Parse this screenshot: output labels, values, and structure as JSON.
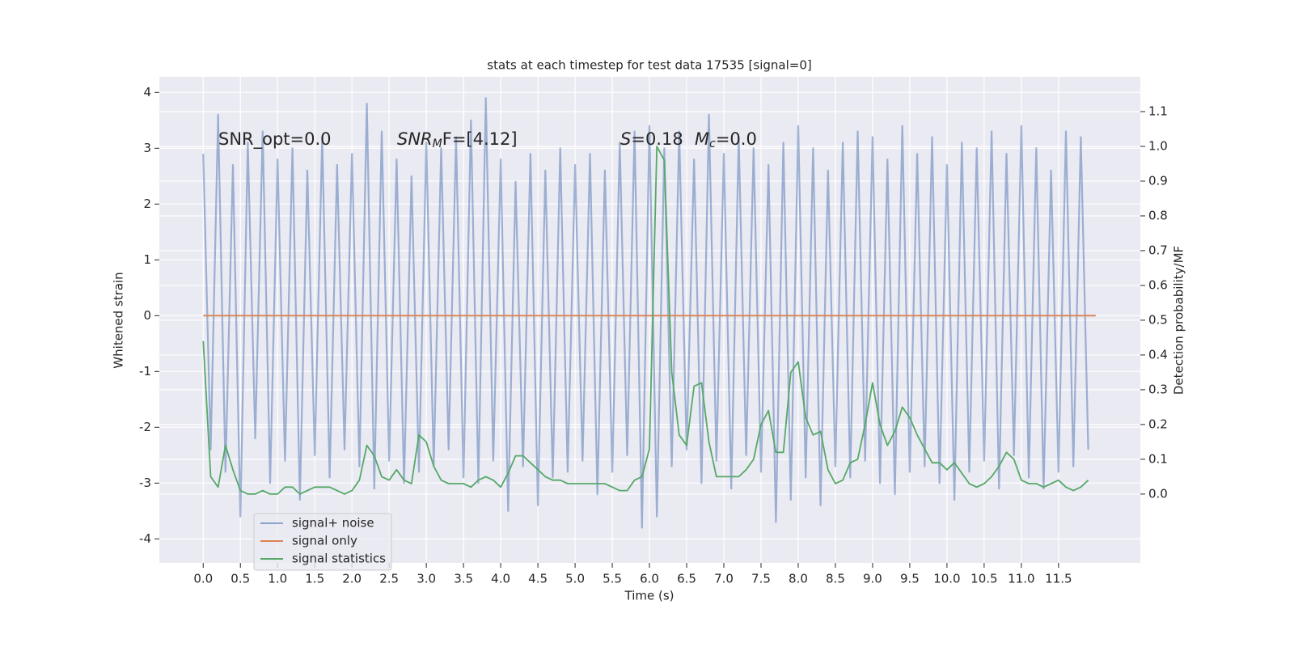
{
  "chart_data": {
    "type": "line",
    "title": "stats at each timestep for test data 17535 [signal=0]",
    "xlabel": "Time (s)",
    "ylabel": "Whitened strain",
    "y2label": "Detection probability/MF",
    "annotations": [
      "SNR_opt=0.0",
      [
        "SNR",
        "M",
        "F=[4.12]"
      ],
      [
        "S",
        "=0.18"
      ],
      [
        "M",
        "c",
        "=0.0"
      ]
    ],
    "x": [
      0,
      0.1,
      0.2,
      0.3,
      0.4,
      0.5,
      0.6,
      0.7,
      0.8,
      0.9,
      1,
      1.1,
      1.2,
      1.3,
      1.4,
      1.5,
      1.6,
      1.7,
      1.8,
      1.9,
      2,
      2.1,
      2.2,
      2.3,
      2.4,
      2.5,
      2.6,
      2.7,
      2.8,
      2.9,
      3,
      3.1,
      3.2,
      3.3,
      3.4,
      3.5,
      3.6,
      3.7,
      3.8,
      3.9,
      4,
      4.1,
      4.2,
      4.3,
      4.4,
      4.5,
      4.6,
      4.7,
      4.8,
      4.9,
      5,
      5.1,
      5.2,
      5.3,
      5.4,
      5.5,
      5.6,
      5.7,
      5.8,
      5.9,
      6,
      6.1,
      6.2,
      6.3,
      6.4,
      6.5,
      6.6,
      6.7,
      6.8,
      6.9,
      7,
      7.1,
      7.2,
      7.3,
      7.4,
      7.5,
      7.6,
      7.7,
      7.8,
      7.9,
      8,
      8.1,
      8.2,
      8.3,
      8.4,
      8.5,
      8.6,
      8.7,
      8.8,
      8.9,
      9,
      9.1,
      9.2,
      9.3,
      9.4,
      9.5,
      9.6,
      9.7,
      9.8,
      9.9,
      10,
      10.1,
      10.2,
      10.3,
      10.4,
      10.5,
      10.6,
      10.7,
      10.8,
      10.9,
      11,
      11.1,
      11.2,
      11.3,
      11.4,
      11.5,
      11.6,
      11.7,
      11.8,
      11.9
    ],
    "series": [
      {
        "name": "signal+ noise",
        "color": "#4c72b0",
        "axis": "y",
        "values": [
          2.9,
          -2.4,
          3.6,
          -2.8,
          2.7,
          -3.6,
          3.1,
          -2.2,
          3.3,
          -3.0,
          2.8,
          -2.6,
          3.0,
          -3.3,
          2.6,
          -2.5,
          3.2,
          -2.9,
          2.7,
          -2.4,
          2.9,
          -2.7,
          3.8,
          -3.1,
          3.3,
          -2.6,
          2.8,
          -3.0,
          2.5,
          -2.8,
          3.1,
          -2.7,
          3.0,
          -2.4,
          3.2,
          -2.9,
          3.5,
          -3.0,
          3.9,
          -2.6,
          2.8,
          -3.5,
          2.4,
          -2.7,
          2.9,
          -3.4,
          2.6,
          -2.9,
          3.0,
          -2.8,
          2.7,
          -2.6,
          2.9,
          -3.2,
          2.6,
          -2.8,
          3.1,
          -2.5,
          3.3,
          -3.8,
          3.4,
          -3.6,
          3.0,
          -2.7,
          3.3,
          -2.4,
          2.8,
          -3.0,
          3.6,
          -2.6,
          2.9,
          -3.1,
          3.2,
          -2.5,
          3.0,
          -2.8,
          2.7,
          -3.7,
          3.1,
          -3.3,
          3.4,
          -2.9,
          3.0,
          -3.4,
          2.6,
          -2.7,
          3.1,
          -2.9,
          3.3,
          -2.6,
          3.2,
          -3.0,
          2.8,
          -3.2,
          3.4,
          -2.8,
          2.9,
          -2.7,
          3.2,
          -3.0,
          2.7,
          -3.3,
          3.1,
          -2.8,
          3.0,
          -2.6,
          3.3,
          -3.1,
          2.9,
          -2.5,
          3.4,
          -2.9,
          3.0,
          -3.1,
          2.6,
          -2.8,
          3.3,
          -2.7,
          3.2,
          -2.4
        ]
      },
      {
        "name": "signal only",
        "color": "#dd8452",
        "axis": "y",
        "x": [
          0,
          12
        ],
        "values": [
          0,
          0
        ]
      },
      {
        "name": "signal statistics",
        "color": "#55a868",
        "axis": "y2",
        "values": [
          0.44,
          0.05,
          0.02,
          0.14,
          0.07,
          0.01,
          0,
          0,
          0.01,
          0,
          0,
          0.02,
          0.02,
          0,
          0.01,
          0.02,
          0.02,
          0.02,
          0.01,
          0,
          0.01,
          0.04,
          0.14,
          0.11,
          0.05,
          0.04,
          0.07,
          0.04,
          0.03,
          0.17,
          0.15,
          0.08,
          0.04,
          0.03,
          0.03,
          0.03,
          0.02,
          0.04,
          0.05,
          0.04,
          0.02,
          0.06,
          0.11,
          0.11,
          0.09,
          0.07,
          0.05,
          0.04,
          0.04,
          0.03,
          0.03,
          0.03,
          0.03,
          0.03,
          0.03,
          0.02,
          0.01,
          0.01,
          0.04,
          0.05,
          0.13,
          1.0,
          0.96,
          0.35,
          0.17,
          0.14,
          0.31,
          0.32,
          0.15,
          0.05,
          0.05,
          0.05,
          0.05,
          0.07,
          0.1,
          0.2,
          0.24,
          0.12,
          0.12,
          0.35,
          0.38,
          0.22,
          0.17,
          0.18,
          0.07,
          0.03,
          0.04,
          0.09,
          0.1,
          0.2,
          0.32,
          0.2,
          0.14,
          0.18,
          0.25,
          0.22,
          0.17,
          0.13,
          0.09,
          0.09,
          0.07,
          0.09,
          0.06,
          0.03,
          0.02,
          0.03,
          0.05,
          0.08,
          0.12,
          0.1,
          0.04,
          0.03,
          0.03,
          0.02,
          0.03,
          0.04,
          0.02,
          0.01,
          0.02,
          0.04
        ]
      }
    ],
    "xlim": [
      -0.59,
      12.6
    ],
    "ylim": [
      -4.43,
      4.28
    ],
    "y2lim": [
      -0.198,
      1.2
    ],
    "xticks": [
      {
        "value": 0,
        "label": "0.0"
      },
      {
        "value": 0.5,
        "label": "0.5"
      },
      {
        "value": 1,
        "label": "1.0"
      },
      {
        "value": 1.5,
        "label": "1.5"
      },
      {
        "value": 2,
        "label": "2.0"
      },
      {
        "value": 2.5,
        "label": "2.5"
      },
      {
        "value": 3,
        "label": "3.0"
      },
      {
        "value": 3.5,
        "label": "3.5"
      },
      {
        "value": 4,
        "label": "4.0"
      },
      {
        "value": 4.5,
        "label": "4.5"
      },
      {
        "value": 5,
        "label": "5.0"
      },
      {
        "value": 5.5,
        "label": "5.5"
      },
      {
        "value": 6,
        "label": "6.0"
      },
      {
        "value": 6.5,
        "label": "6.5"
      },
      {
        "value": 7,
        "label": "7.0"
      },
      {
        "value": 7.5,
        "label": "7.5"
      },
      {
        "value": 8,
        "label": "8.0"
      },
      {
        "value": 8.5,
        "label": "8.5"
      },
      {
        "value": 9,
        "label": "9.0"
      },
      {
        "value": 9.5,
        "label": "9.5"
      },
      {
        "value": 10,
        "label": "10.0"
      },
      {
        "value": 10.5,
        "label": "10.5"
      },
      {
        "value": 11,
        "label": "11.0"
      },
      {
        "value": 11.5,
        "label": "11.5"
      }
    ],
    "yticks": [
      -4,
      -3,
      -2,
      -1,
      0,
      1,
      2,
      3,
      4
    ],
    "y2ticks": [
      {
        "value": 0,
        "label": "0.0"
      },
      {
        "value": 0.1,
        "label": "0.1"
      },
      {
        "value": 0.2,
        "label": "0.2"
      },
      {
        "value": 0.3,
        "label": "0.3"
      },
      {
        "value": 0.4,
        "label": "0.4"
      },
      {
        "value": 0.5,
        "label": "0.5"
      },
      {
        "value": 0.6,
        "label": "0.6"
      },
      {
        "value": 0.7,
        "label": "0.7"
      },
      {
        "value": 0.8,
        "label": "0.8"
      },
      {
        "value": 0.9,
        "label": "0.9"
      },
      {
        "value": 1.0,
        "label": "1.0"
      },
      {
        "value": 1.1,
        "label": "1.1"
      }
    ],
    "grid": true,
    "legend": "lower left"
  }
}
